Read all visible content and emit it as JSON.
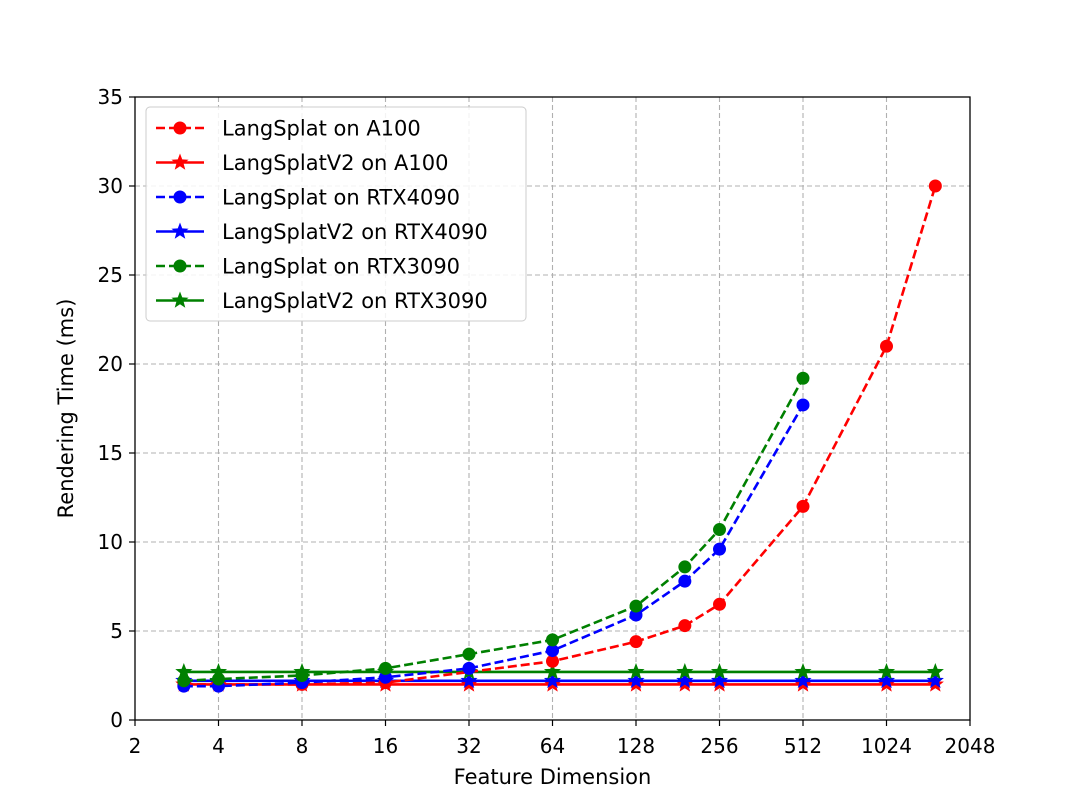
{
  "chart_data": {
    "type": "line",
    "title": "",
    "xlabel": "Feature Dimension",
    "ylabel": "Rendering Time (ms)",
    "x_scale": "log2",
    "xlim": [
      2,
      2048
    ],
    "ylim": [
      0,
      35
    ],
    "x_ticks": [
      2,
      4,
      8,
      16,
      32,
      64,
      128,
      256,
      512,
      1024,
      2048
    ],
    "x_tick_labels": [
      "2",
      "4",
      "8",
      "16",
      "32",
      "64",
      "128",
      "256",
      "512",
      "1024",
      "2048"
    ],
    "y_ticks": [
      0,
      5,
      10,
      15,
      20,
      25,
      30,
      35
    ],
    "y_tick_labels": [
      "0",
      "5",
      "10",
      "15",
      "20",
      "25",
      "30",
      "35"
    ],
    "grid": true,
    "legend_position": "top-left",
    "series": [
      {
        "name": "LangSplat on A100",
        "color": "#ff0000",
        "line_style": "dashed",
        "marker": "circle",
        "x": [
          3,
          4,
          8,
          16,
          64,
          128,
          192,
          256,
          512,
          1024,
          1536
        ],
        "y": [
          2.0,
          2.0,
          2.0,
          2.1,
          3.3,
          4.4,
          5.3,
          6.5,
          12.0,
          21.0,
          30.0
        ]
      },
      {
        "name": "LangSplatV2 on A100",
        "color": "#ff0000",
        "line_style": "solid",
        "marker": "star",
        "x": [
          3,
          4,
          8,
          16,
          32,
          64,
          128,
          192,
          256,
          512,
          1024,
          1536
        ],
        "y": [
          2.0,
          2.0,
          2.0,
          2.0,
          2.0,
          2.0,
          2.0,
          2.0,
          2.0,
          2.0,
          2.0,
          2.0
        ]
      },
      {
        "name": "LangSplat on RTX4090",
        "color": "#0000ff",
        "line_style": "dashed",
        "marker": "circle",
        "x": [
          3,
          4,
          8,
          16,
          32,
          64,
          128,
          192,
          256,
          512
        ],
        "y": [
          1.9,
          1.9,
          2.1,
          2.4,
          2.9,
          3.9,
          5.9,
          7.8,
          9.6,
          17.7
        ]
      },
      {
        "name": "LangSplatV2 on RTX4090",
        "color": "#0000ff",
        "line_style": "solid",
        "marker": "star",
        "x": [
          3,
          4,
          8,
          16,
          32,
          64,
          128,
          192,
          256,
          512,
          1024,
          1536
        ],
        "y": [
          2.2,
          2.2,
          2.2,
          2.2,
          2.2,
          2.2,
          2.2,
          2.2,
          2.2,
          2.2,
          2.2,
          2.2
        ]
      },
      {
        "name": "LangSplat on RTX3090",
        "color": "#008000",
        "line_style": "dashed",
        "marker": "circle",
        "x": [
          3,
          4,
          8,
          16,
          32,
          64,
          128,
          192,
          256,
          512
        ],
        "y": [
          2.2,
          2.3,
          2.5,
          2.9,
          3.7,
          4.5,
          6.4,
          8.6,
          10.7,
          19.2
        ]
      },
      {
        "name": "LangSplatV2 on RTX3090",
        "color": "#008000",
        "line_style": "solid",
        "marker": "star",
        "x": [
          3,
          4,
          8,
          16,
          32,
          64,
          128,
          192,
          256,
          512,
          1024,
          1536
        ],
        "y": [
          2.7,
          2.7,
          2.7,
          2.7,
          2.7,
          2.7,
          2.7,
          2.7,
          2.7,
          2.7,
          2.7,
          2.7
        ]
      }
    ]
  }
}
